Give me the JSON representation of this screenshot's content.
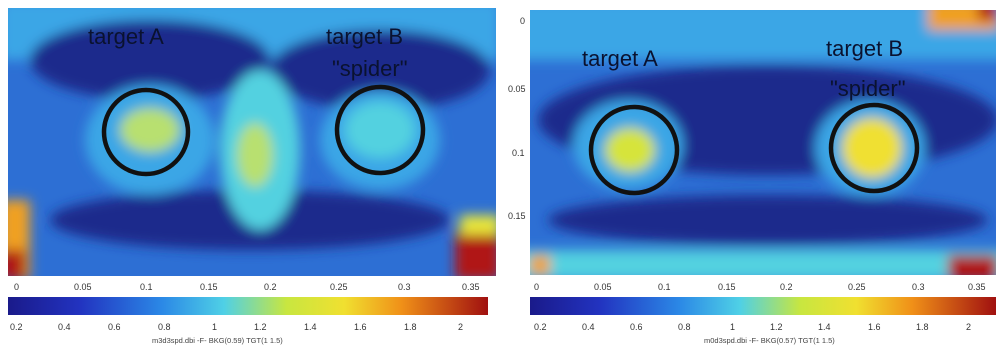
{
  "left": {
    "target_a_label": "target A",
    "target_b_label": "target B",
    "target_b_sub": "\"spider\"",
    "x_ticks": [
      "0",
      "0.05",
      "0.1",
      "0.15",
      "0.2",
      "0.25",
      "0.3",
      "0.35"
    ],
    "colorbar_ticks": [
      "0.2",
      "0.4",
      "0.6",
      "0.8",
      "1",
      "1.2",
      "1.4",
      "1.6",
      "1.8",
      "2"
    ],
    "caption": "m3d3spd.dbi -F- BKG(0.59) TGT(1      1.5)"
  },
  "right": {
    "target_a_label": "target A",
    "target_b_label": "target B",
    "target_b_sub": "\"spider\"",
    "x_ticks": [
      "0",
      "0.05",
      "0.1",
      "0.15",
      "0.2",
      "0.25",
      "0.3",
      "0.35"
    ],
    "y_ticks": [
      "0",
      "0.05",
      "0.1",
      "0.15"
    ],
    "colorbar_ticks": [
      "0.2",
      "0.4",
      "0.6",
      "0.8",
      "1",
      "1.2",
      "1.4",
      "1.6",
      "1.8",
      "2"
    ],
    "caption": "m0d3spd.dbi -F- BKG(0.57) TGT(1      1.5)"
  },
  "colors": {
    "deep": "#1c2a8c",
    "mid": "#2d6fd4",
    "light": "#3aa6e6",
    "cyan": "#52d1e0",
    "yellow": "#e8e63a",
    "orange": "#f0a020",
    "red": "#b01818"
  }
}
